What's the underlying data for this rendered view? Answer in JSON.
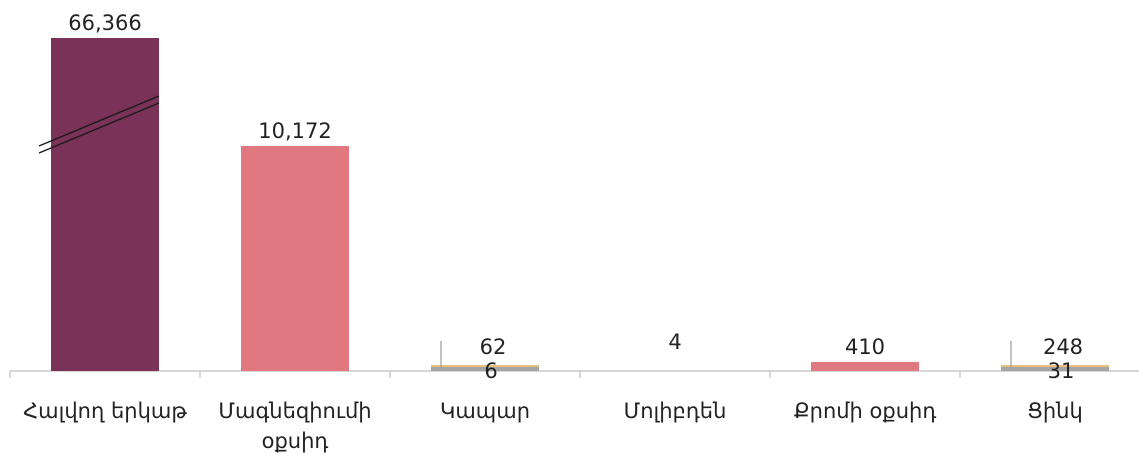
{
  "chart_data": {
    "type": "bar",
    "title": "",
    "xlabel": "",
    "ylabel": "",
    "categories": [
      "Հալվող երկաթ",
      "Մագնեզիումի օքսիդ",
      "Կապար",
      "Մոլիբդեն",
      "Քրոմի օքսիդ",
      "Ցինկ"
    ],
    "series": [
      {
        "values": [
          66366,
          10172,
          62,
          4,
          410,
          248
        ],
        "color": "#7b3259"
      },
      {
        "values": [
          null,
          null,
          6,
          null,
          null,
          31
        ],
        "color": "#a5a5a5"
      }
    ],
    "bar_colors": [
      "#7b3259",
      "#e07880",
      "#e8c07a",
      "#e07880",
      "#e07880",
      "#e8c07a"
    ],
    "data_labels": [
      [
        "66,366",
        "10,172",
        "62",
        "4",
        "410",
        "248"
      ],
      [
        "",
        "",
        "6",
        "",
        "",
        "31"
      ]
    ],
    "axis_break": "Հալվող երկաթ",
    "ylim": [
      0,
      10800
    ],
    "grid": false,
    "legend": "none"
  }
}
